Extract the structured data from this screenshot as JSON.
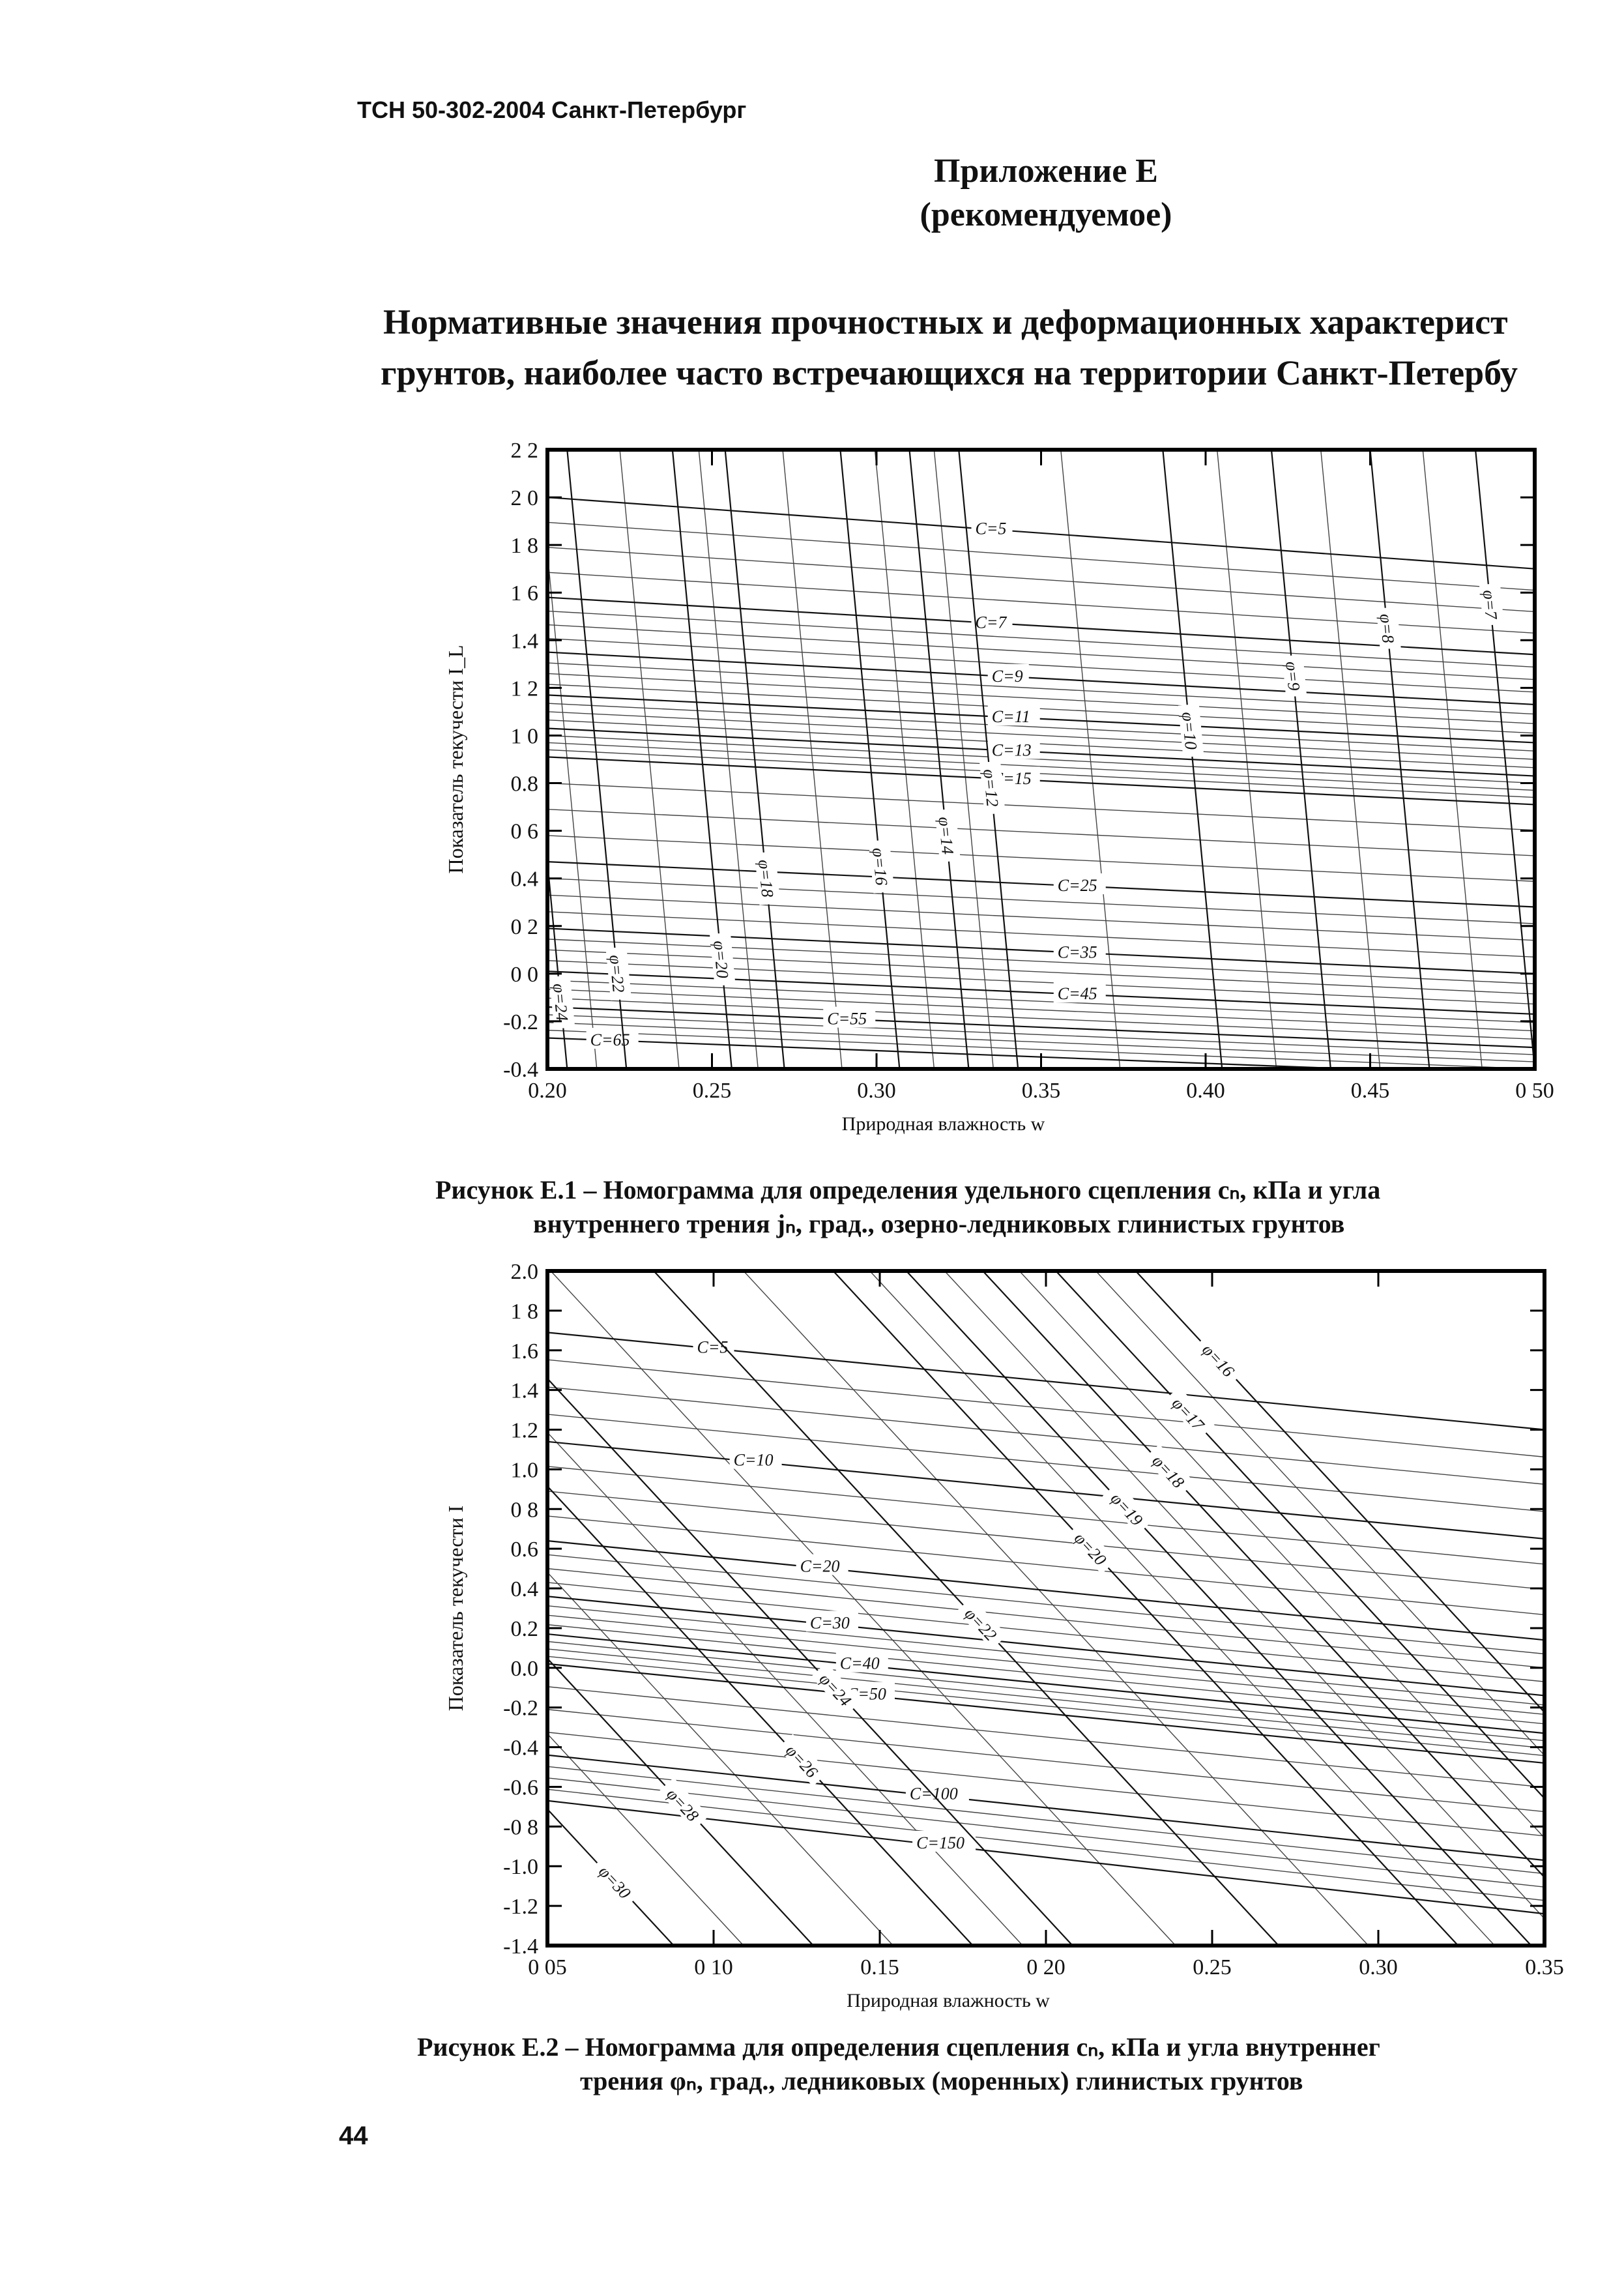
{
  "header": {
    "doc_code": "ТСН 50-302-2004 Санкт-Петербург"
  },
  "appendix": {
    "title": "Приложение Е",
    "subtitle": "(рекомендуемое)"
  },
  "doc_title": {
    "line1": "Нормативные значения прочностных и деформационных характерист",
    "line2": "грунтов, наиболее часто встречающихся на территории Санкт-Петербу"
  },
  "figure1": {
    "caption_line1": "Рисунок Е.1 – Номограмма для определения удельного сцепления cₙ, кПа и угла",
    "caption_line2": "внутреннего трения jₙ, град., озерно-ледниковых глинистых грунтов",
    "chart_data": {
      "type": "line",
      "title": "",
      "xlabel": "Природная влажность w",
      "ylabel": "Показатель текучести I_L",
      "xlim": [
        0.2,
        0.5
      ],
      "ylim": [
        -0.4,
        2.2
      ],
      "x_ticks": [
        "0.20",
        "0.25",
        "0.30",
        "0.35",
        "0.40",
        "0.45",
        "0 50"
      ],
      "y_ticks": [
        "-0.4",
        "-0.2",
        "0 0",
        "0 2",
        "0.4",
        "0 6",
        "0.8",
        "1 0",
        "1 2",
        "1.4",
        "1 6",
        "1 8",
        "2 0",
        "2 2"
      ],
      "y_tick_values": [
        -0.4,
        -0.2,
        0.0,
        0.2,
        0.4,
        0.6,
        0.8,
        1.0,
        1.2,
        1.4,
        1.6,
        1.8,
        2.0,
        2.2
      ],
      "c_lines": [
        {
          "label": "C=5",
          "left": 2.0,
          "right": 1.7,
          "lx": 0.33
        },
        {
          "label": "C=7",
          "left": 1.58,
          "right": 1.34,
          "lx": 0.33
        },
        {
          "label": "C=9",
          "left": 1.35,
          "right": 1.13,
          "lx": 0.335
        },
        {
          "label": "C=11",
          "left": 1.17,
          "right": 0.97,
          "lx": 0.335
        },
        {
          "label": "C=13",
          "left": 1.03,
          "right": 0.83,
          "lx": 0.335
        },
        {
          "label": "C=15",
          "left": 0.91,
          "right": 0.71,
          "lx": 0.335
        },
        {
          "label": "C=25",
          "left": 0.47,
          "right": 0.28,
          "lx": 0.355
        },
        {
          "label": "C=35",
          "left": 0.19,
          "right": 0.0,
          "lx": 0.355
        },
        {
          "label": "C=45",
          "left": 0.01,
          "right": -0.17,
          "lx": 0.355
        },
        {
          "label": "C=55",
          "left": -0.14,
          "right": -0.31,
          "lx": 0.285
        },
        {
          "label": "C=65",
          "left": -0.27,
          "right": -0.43,
          "lx": 0.213
        }
      ],
      "phi_lines": [
        {
          "label": "φ=7",
          "top": 0.482,
          "bottom": 0.5,
          "ly": 1.55
        },
        {
          "label": "φ=8",
          "top": 0.45,
          "bottom": 0.468,
          "ly": 1.45
        },
        {
          "label": "φ=9",
          "top": 0.42,
          "bottom": 0.438,
          "ly": 1.25
        },
        {
          "label": "φ=10",
          "top": 0.387,
          "bottom": 0.405,
          "ly": 1.02
        },
        {
          "label": "φ=12",
          "top": 0.325,
          "bottom": 0.343,
          "ly": 0.78
        },
        {
          "label": "φ=14",
          "top": 0.31,
          "bottom": 0.328,
          "ly": 0.58
        },
        {
          "label": "φ=16",
          "top": 0.289,
          "bottom": 0.307,
          "ly": 0.45
        },
        {
          "label": "φ=18",
          "top": 0.254,
          "bottom": 0.272,
          "ly": 0.4
        },
        {
          "label": "φ=20",
          "top": 0.238,
          "bottom": 0.256,
          "ly": 0.06
        },
        {
          "label": "φ=22",
          "top": 0.206,
          "bottom": 0.224,
          "ly": 0.0
        },
        {
          "label": "φ=24",
          "top": 0.188,
          "bottom": 0.206,
          "ly": -0.12
        }
      ]
    }
  },
  "figure2": {
    "caption_line1": "Рисунок Е.2 – Номограмма для определения сцепления cₙ, кПа и угла внутреннег",
    "caption_line2": "трения φₙ, град., ледниковых (моренных) глинистых грунтов",
    "chart_data": {
      "type": "line",
      "title": "",
      "xlabel": "Природная влажность w",
      "ylabel": "Показатель текучести I",
      "xlim": [
        0.05,
        0.35
      ],
      "ylim": [
        -1.4,
        2.0
      ],
      "x_ticks": [
        "0 05",
        "0 10",
        "0.15",
        "0 20",
        "0.25",
        "0.30",
        "0.35"
      ],
      "y_ticks": [
        "-1.4",
        "-1.2",
        "-1.0",
        "-0 8",
        "-0.6",
        "-0.4",
        "-0.2",
        "0.0",
        "0.2",
        "0.4",
        "0.6",
        "0 8",
        "1.0",
        "1.2",
        "1.4",
        "1.6",
        "1 8",
        "2.0"
      ],
      "y_tick_values": [
        -1.4,
        -1.2,
        -1.0,
        -0.8,
        -0.6,
        -0.4,
        -0.2,
        0.0,
        0.2,
        0.4,
        0.6,
        0.8,
        1.0,
        1.2,
        1.4,
        1.6,
        1.8,
        2.0
      ],
      "c_lines": [
        {
          "label": "C=5",
          "left": 1.69,
          "right": 1.2,
          "lx": 0.095
        },
        {
          "label": "C=10",
          "left": 1.14,
          "right": 0.65,
          "lx": 0.106
        },
        {
          "label": "C=20",
          "left": 0.64,
          "right": 0.14,
          "lx": 0.126
        },
        {
          "label": "C=30",
          "left": 0.36,
          "right": -0.14,
          "lx": 0.129
        },
        {
          "label": "C=40",
          "left": 0.17,
          "right": -0.33,
          "lx": 0.138
        },
        {
          "label": "C=50",
          "left": 0.02,
          "right": -0.48,
          "lx": 0.14
        },
        {
          "label": "C=100",
          "left": -0.44,
          "right": -0.97,
          "lx": 0.159
        },
        {
          "label": "C=150",
          "left": -0.67,
          "right": -1.24,
          "lx": 0.161
        }
      ],
      "phi_lines": [
        {
          "label": "φ=16",
          "top": 0.227,
          "bottom": 0.415,
          "ly": 1.55
        },
        {
          "label": "φ=17",
          "top": 0.203,
          "bottom": 0.391,
          "ly": 1.28
        },
        {
          "label": "φ=18",
          "top": 0.181,
          "bottom": 0.369,
          "ly": 0.99
        },
        {
          "label": "φ=19",
          "top": 0.158,
          "bottom": 0.346,
          "ly": 0.8
        },
        {
          "label": "φ=20",
          "top": 0.136,
          "bottom": 0.324,
          "ly": 0.6
        },
        {
          "label": "φ=22",
          "top": 0.082,
          "bottom": 0.27,
          "ly": 0.22
        },
        {
          "label": "φ=24",
          "top": 0.02,
          "bottom": 0.208,
          "ly": -0.11
        },
        {
          "label": "φ=26",
          "top": -0.01,
          "bottom": 0.178,
          "ly": -0.47
        },
        {
          "label": "φ=28",
          "top": -0.058,
          "bottom": 0.13,
          "ly": -0.69
        },
        {
          "label": "φ=30",
          "top": -0.1,
          "bottom": 0.088,
          "ly": -1.08
        }
      ]
    }
  },
  "page_number": "44"
}
